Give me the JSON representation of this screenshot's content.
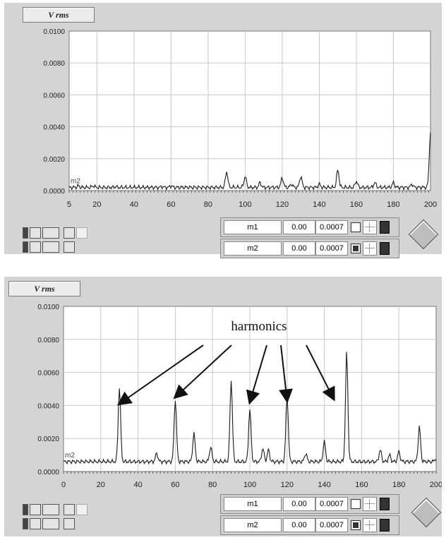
{
  "charts": [
    {
      "tab_label": "V rms",
      "cursor_label": "m2"
    },
    {
      "tab_label": "V rms",
      "cursor_label": "m2",
      "annotation": "harmonics"
    }
  ],
  "cursor_rows": [
    {
      "name": "m1",
      "x": "0.00",
      "y": "0.0007"
    },
    {
      "name": "m2",
      "x": "0.00",
      "y": "0.0007"
    }
  ],
  "colors": {
    "panel": "#d4d4d4",
    "plot": "#ffffff",
    "grid": "#c8c8c8",
    "trace": "#1a1a1a"
  },
  "chart_data": [
    {
      "type": "line",
      "title": "V rms",
      "xlabel": "",
      "ylabel": "",
      "xlim": [
        5,
        200
      ],
      "ylim": [
        0,
        0.01
      ],
      "x_ticks": [
        5,
        20,
        40,
        60,
        80,
        100,
        120,
        140,
        160,
        180,
        200
      ],
      "x_tick_labels": [
        "5",
        "20",
        "40",
        "60",
        "80",
        "100",
        "120",
        "140",
        "160",
        "180",
        "200"
      ],
      "y_ticks": [
        0,
        0.002,
        0.004,
        0.006,
        0.008,
        0.01
      ],
      "y_tick_labels": [
        "0.0000",
        "0.0020",
        "0.0040",
        "0.0060",
        "0.0080",
        "0.0100"
      ],
      "grid": true,
      "baseline": 0.0002,
      "peaks": [
        [
          10,
          0.0003
        ],
        [
          18,
          0.0003
        ],
        [
          30,
          0.00025
        ],
        [
          55,
          0.00025
        ],
        [
          60,
          0.0003
        ],
        [
          90,
          0.0012
        ],
        [
          100,
          0.0009
        ],
        [
          108,
          0.0005
        ],
        [
          120,
          0.0008
        ],
        [
          125,
          0.0004
        ],
        [
          130,
          0.0009
        ],
        [
          140,
          0.0004
        ],
        [
          150,
          0.0013
        ],
        [
          160,
          0.0006
        ],
        [
          170,
          0.0005
        ],
        [
          180,
          0.0005
        ],
        [
          190,
          0.0004
        ],
        [
          200,
          0.0037
        ]
      ]
    },
    {
      "type": "line",
      "title": "V rms",
      "xlabel": "",
      "ylabel": "",
      "xlim": [
        0,
        200
      ],
      "ylim": [
        0,
        0.01
      ],
      "x_ticks": [
        0,
        20,
        40,
        60,
        80,
        100,
        120,
        140,
        160,
        180,
        200
      ],
      "x_tick_labels": [
        "0",
        "20",
        "40",
        "60",
        "80",
        "100",
        "120",
        "140",
        "160",
        "180",
        "200"
      ],
      "y_ticks": [
        0,
        0.002,
        0.004,
        0.006,
        0.008,
        0.01
      ],
      "y_tick_labels": [
        "0.0000",
        "0.0020",
        "0.0040",
        "0.0060",
        "0.0080",
        "0.0100"
      ],
      "grid": true,
      "baseline": 0.0006,
      "peaks": [
        [
          30,
          0.0051
        ],
        [
          50,
          0.0011
        ],
        [
          60,
          0.0044
        ],
        [
          70,
          0.0023
        ],
        [
          79,
          0.0015
        ],
        [
          90,
          0.0055
        ],
        [
          100,
          0.0038
        ],
        [
          107,
          0.0014
        ],
        [
          110,
          0.0013
        ],
        [
          120,
          0.0046
        ],
        [
          130,
          0.0011
        ],
        [
          140,
          0.0018
        ],
        [
          152,
          0.0072
        ],
        [
          170,
          0.0013
        ],
        [
          175,
          0.001
        ],
        [
          180,
          0.0012
        ],
        [
          191,
          0.0027
        ],
        [
          200,
          0.0008
        ]
      ],
      "annotation": {
        "text": "harmonics",
        "arrow_targets": [
          [
            30,
            0.0041
          ],
          [
            60,
            0.0045
          ],
          [
            100,
            0.0042
          ],
          [
            120,
            0.0043
          ],
          [
            145,
            0.0044
          ]
        ]
      }
    }
  ]
}
